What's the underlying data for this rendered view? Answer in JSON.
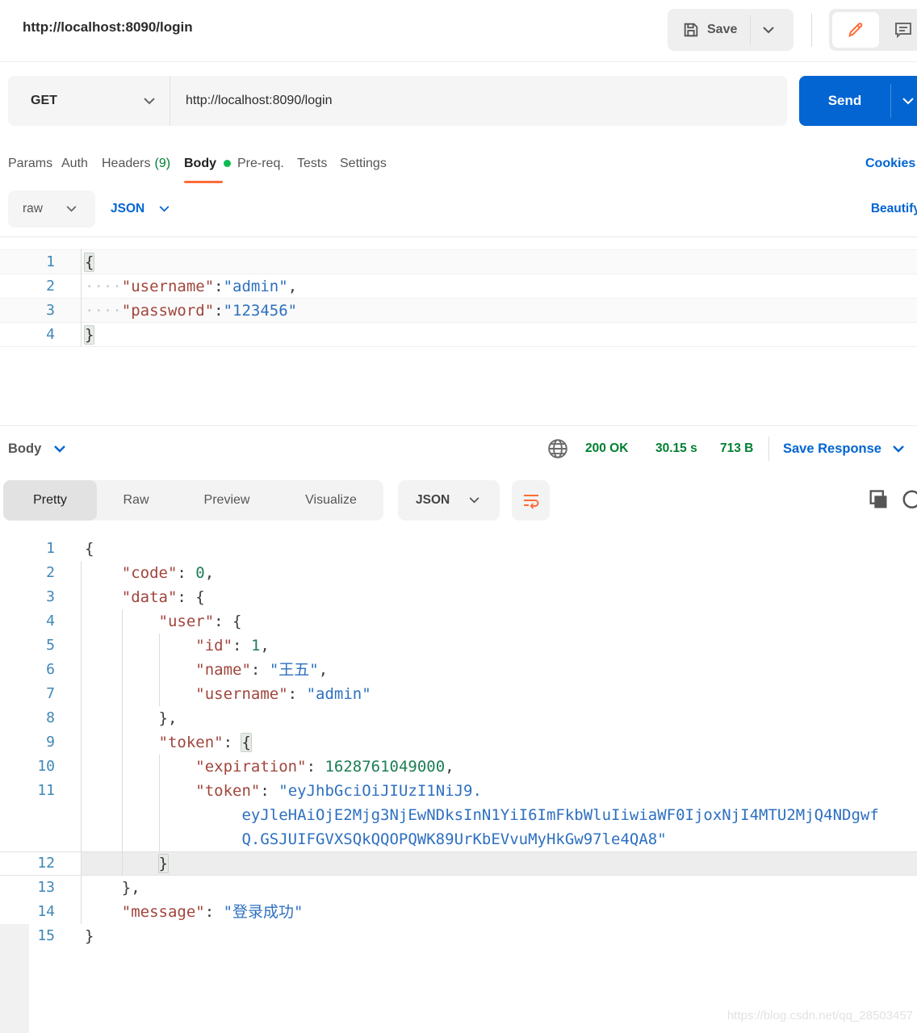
{
  "colors": {
    "accent_orange": "#FF6C37",
    "link_blue": "#0265D2",
    "success_green": "#007F31",
    "body_dot_green": "#0CBB52",
    "token_key": "#A0453C",
    "token_string": "#2E70C0",
    "token_number": "#1C7E55",
    "line_number": "#3F87B8"
  },
  "header": {
    "title": "http://localhost:8090/login",
    "save_label": "Save"
  },
  "request_bar": {
    "method": "GET",
    "url": "http://localhost:8090/login",
    "send_label": "Send"
  },
  "request_tabs": {
    "params": "Params",
    "auth": "Auth",
    "headers": "Headers",
    "headers_count": "(9)",
    "body": "Body",
    "prereq": "Pre-req.",
    "tests": "Tests",
    "settings": "Settings",
    "cookies_link": "Cookies"
  },
  "body_toolbar": {
    "type": "raw",
    "language": "JSON",
    "beautify_label": "Beautify"
  },
  "request_editor": {
    "lines": [
      {
        "n": "1",
        "t": [
          [
            "b",
            "{"
          ]
        ]
      },
      {
        "n": "2",
        "t": [
          [
            "d",
            "····"
          ],
          [
            "k",
            "\"username\""
          ],
          [
            "p",
            ":"
          ],
          [
            "s",
            "\"admin\""
          ],
          [
            "p",
            ","
          ]
        ]
      },
      {
        "n": "3",
        "t": [
          [
            "d",
            "····"
          ],
          [
            "k",
            "\"password\""
          ],
          [
            "p",
            ":"
          ],
          [
            "s",
            "\"123456\""
          ]
        ]
      },
      {
        "n": "4",
        "t": [
          [
            "b",
            "}"
          ]
        ]
      }
    ]
  },
  "response_header": {
    "body_label": "Body",
    "status": "200 OK",
    "time": "30.15 s",
    "size": "713 B",
    "save_response_label": "Save Response"
  },
  "response_toolbar": {
    "tab_pretty": "Pretty",
    "tab_raw": "Raw",
    "tab_preview": "Preview",
    "tab_visualize": "Visualize",
    "language": "JSON"
  },
  "response_editor": {
    "lines": [
      {
        "n": "1",
        "t": [
          [
            "p",
            "{"
          ]
        ]
      },
      {
        "n": "2",
        "t": [
          [
            "p",
            "    "
          ],
          [
            "k",
            "\"code\""
          ],
          [
            "p",
            ": "
          ],
          [
            "n",
            "0"
          ],
          [
            "p",
            ","
          ]
        ]
      },
      {
        "n": "3",
        "t": [
          [
            "p",
            "    "
          ],
          [
            "k",
            "\"data\""
          ],
          [
            "p",
            ": "
          ],
          [
            "p",
            "{"
          ]
        ]
      },
      {
        "n": "4",
        "t": [
          [
            "p",
            "        "
          ],
          [
            "k",
            "\"user\""
          ],
          [
            "p",
            ": "
          ],
          [
            "p",
            "{"
          ]
        ]
      },
      {
        "n": "5",
        "t": [
          [
            "p",
            "            "
          ],
          [
            "k",
            "\"id\""
          ],
          [
            "p",
            ": "
          ],
          [
            "n",
            "1"
          ],
          [
            "p",
            ","
          ]
        ]
      },
      {
        "n": "6",
        "t": [
          [
            "p",
            "            "
          ],
          [
            "k",
            "\"name\""
          ],
          [
            "p",
            ": "
          ],
          [
            "s",
            "\"王五\""
          ],
          [
            "p",
            ","
          ]
        ]
      },
      {
        "n": "7",
        "t": [
          [
            "p",
            "            "
          ],
          [
            "k",
            "\"username\""
          ],
          [
            "p",
            ": "
          ],
          [
            "s",
            "\"admin\""
          ]
        ]
      },
      {
        "n": "8",
        "t": [
          [
            "p",
            "        "
          ],
          [
            "p",
            "},"
          ]
        ]
      },
      {
        "n": "9",
        "t": [
          [
            "p",
            "        "
          ],
          [
            "k",
            "\"token\""
          ],
          [
            "p",
            ": "
          ],
          [
            "b",
            "{"
          ]
        ]
      },
      {
        "n": "10",
        "t": [
          [
            "p",
            "            "
          ],
          [
            "k",
            "\"expiration\""
          ],
          [
            "p",
            ": "
          ],
          [
            "n",
            "1628761049000"
          ],
          [
            "p",
            ","
          ]
        ]
      },
      {
        "n": "11",
        "t": [
          [
            "p",
            "            "
          ],
          [
            "k",
            "\"token\""
          ],
          [
            "p",
            ": "
          ],
          [
            "s",
            "\"eyJhbGciOiJIUzI1NiJ9."
          ]
        ]
      },
      {
        "n": "",
        "t": [
          [
            "p",
            "                 "
          ],
          [
            "s",
            "eyJleHAiOjE2Mjg3NjEwNDksInN1YiI6ImFkbWluIiwiaWF0IjoxNjI4MTU2MjQ4NDgwf"
          ]
        ]
      },
      {
        "n": "",
        "t": [
          [
            "p",
            "                 "
          ],
          [
            "s",
            "Q.GSJUIFGVXSQkQQOPQWK89UrKbEVvuMyHkGw97le4QA8\""
          ]
        ]
      },
      {
        "n": "12",
        "a": true,
        "t": [
          [
            "p",
            "        "
          ],
          [
            "b",
            "}"
          ]
        ]
      },
      {
        "n": "13",
        "t": [
          [
            "p",
            "    "
          ],
          [
            "p",
            "},"
          ]
        ]
      },
      {
        "n": "14",
        "t": [
          [
            "p",
            "    "
          ],
          [
            "k",
            "\"message\""
          ],
          [
            "p",
            ": "
          ],
          [
            "s",
            "\"登录成功\""
          ]
        ]
      },
      {
        "n": "15",
        "t": [
          [
            "p",
            "}"
          ]
        ]
      }
    ]
  },
  "watermark": "https://blog.csdn.net/qq_28503457"
}
